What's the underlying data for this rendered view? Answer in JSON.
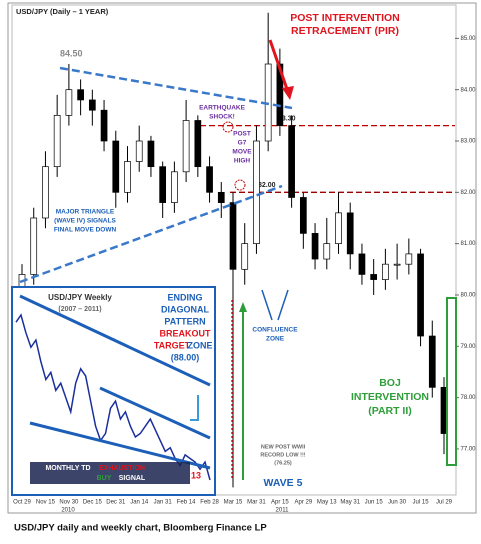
{
  "chart_data": {
    "type": "candlestick",
    "title": "USD/JPY (Daily – 1 YEAR)",
    "categories": [
      "Oct 29",
      null,
      "Nov 15",
      null,
      "Nov 30",
      null,
      "Dec 15",
      null,
      "Dec 31",
      null,
      "Jan 14",
      null,
      "Jan 31",
      null,
      "Feb 14",
      null,
      "Feb 28",
      null,
      "Mar 15",
      null,
      "Mar 31",
      null,
      "Apr 15",
      null,
      "Apr 29",
      null,
      "May 13",
      null,
      "May 31",
      null,
      "Jun 15",
      null,
      "Jun 30",
      null,
      "Jul 15",
      null,
      "Jul 29"
    ],
    "open": [
      80.0,
      80.4,
      81.5,
      82.5,
      83.5,
      84.0,
      83.8,
      83.6,
      83.0,
      82.0,
      82.6,
      83.0,
      82.5,
      81.8,
      82.4,
      83.4,
      82.5,
      82.0,
      81.8,
      80.5,
      81.0,
      83.0,
      84.5,
      83.3,
      81.9,
      81.2,
      80.7,
      81.0,
      81.6,
      80.8,
      80.4,
      80.3,
      80.6,
      80.6,
      80.8,
      79.2,
      78.2
    ],
    "high": [
      80.6,
      81.7,
      82.8,
      83.9,
      84.5,
      84.2,
      84.0,
      83.8,
      83.2,
      82.9,
      83.3,
      83.1,
      82.6,
      82.6,
      83.8,
      83.5,
      82.7,
      82.2,
      82.0,
      81.4,
      83.3,
      85.5,
      84.8,
      83.5,
      82.0,
      81.4,
      81.5,
      82.0,
      81.8,
      81.0,
      80.7,
      80.9,
      81.0,
      81.1,
      80.9,
      79.5,
      78.4
    ],
    "low": [
      79.8,
      80.2,
      81.3,
      82.3,
      83.3,
      83.5,
      83.3,
      82.8,
      81.7,
      81.8,
      82.4,
      82.3,
      81.5,
      81.6,
      82.2,
      82.3,
      81.8,
      81.5,
      76.25,
      80.2,
      80.8,
      82.8,
      83.1,
      81.7,
      80.9,
      80.5,
      80.5,
      80.8,
      80.5,
      80.2,
      80.0,
      80.1,
      80.3,
      80.4,
      79.0,
      78.0,
      76.9
    ],
    "close": [
      80.4,
      81.5,
      82.5,
      83.5,
      84.0,
      83.8,
      83.6,
      83.0,
      82.0,
      82.6,
      83.0,
      82.5,
      81.8,
      82.4,
      83.4,
      82.5,
      82.0,
      81.8,
      80.5,
      81.0,
      83.0,
      84.5,
      83.3,
      81.9,
      81.2,
      80.7,
      81.0,
      81.6,
      80.8,
      80.4,
      80.3,
      80.6,
      80.6,
      80.8,
      79.2,
      78.2,
      77.3
    ],
    "up_color": "#ffffff",
    "down_color": "#000000",
    "ylim": [
      76.2,
      85.65
    ],
    "yticks": [
      {
        "value": 77,
        "label": "77.00"
      },
      {
        "value": 78,
        "label": "78.00"
      },
      {
        "value": 79,
        "label": "79.00"
      },
      {
        "value": 80,
        "label": "80.00"
      },
      {
        "value": 81,
        "label": "81.00"
      },
      {
        "value": 82,
        "label": "82.00"
      },
      {
        "value": 83,
        "label": "83.00"
      },
      {
        "value": 84,
        "label": "84.00"
      },
      {
        "value": 85,
        "label": "85.00"
      }
    ],
    "year_labels": [
      "2010",
      "2011"
    ],
    "peak_label": {
      "value": 84.5,
      "label": "84.50"
    },
    "levels": [
      {
        "value": 83.3,
        "label": "83.30",
        "color": "#c00000"
      },
      {
        "value": 82,
        "label": "82.00",
        "color": "#a00000"
      }
    ],
    "annotations": [
      "POST INTERVENTION",
      "RETRACEMENT (PIR)",
      "EARTHQUAKE",
      "SHOCK!",
      "POST",
      "G7",
      "MOVE",
      "HIGH",
      "MAJOR TRIANGLE",
      "(WAVE IV) SIGNALS",
      "FINAL MOVE DOWN",
      "ENDING",
      "DIAGONAL",
      "PATTERN",
      "BREAKOUT",
      "TARGET",
      "ZONE",
      "(88.00)",
      "CONFLUENCE",
      "ZONE",
      "BOJ",
      "INTERVENTION",
      "(PART II)",
      "WAVE 5",
      "NEW POST WWII",
      "RECORD LOW !!!",
      "(76.25)",
      "MONTHLY TD",
      "EXHAUSTION",
      "BUY",
      "SIGNAL",
      "13"
    ],
    "inset": {
      "type": "line",
      "title": "USD/JPY Weekly",
      "subtitle": "(2007 – 2011)",
      "color": "#1a2f9c",
      "values": [
        121,
        123,
        118,
        114,
        116,
        110,
        105,
        107,
        102,
        104,
        100,
        96,
        104,
        108,
        106,
        99,
        92,
        88,
        90,
        97,
        99,
        94,
        96,
        92,
        89,
        90,
        92,
        94,
        91,
        88,
        85,
        86,
        83,
        81,
        84,
        83,
        82,
        80,
        82,
        77
      ]
    }
  },
  "caption": "USD/JPY daily and weekly chart, Bloomberg Finance LP"
}
